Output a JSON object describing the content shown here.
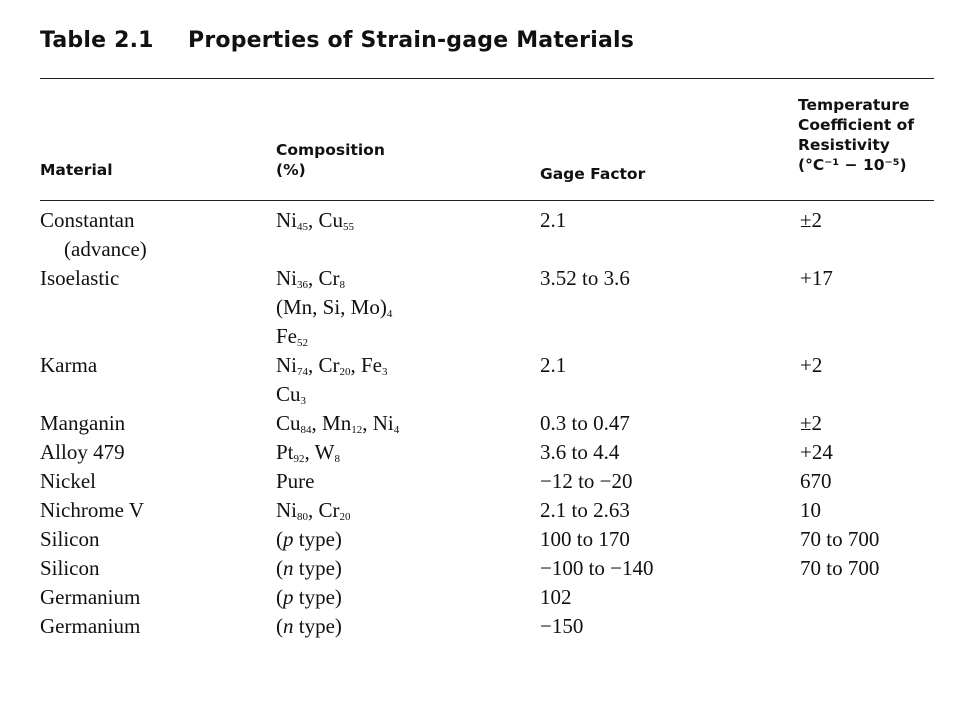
{
  "caption": {
    "table_number": "Table 2.1",
    "title": "Properties of Strain-gage Materials"
  },
  "headers": {
    "material": [
      "Material"
    ],
    "composition": [
      "Composition",
      "(%)"
    ],
    "gage_factor": [
      "Gage Factor"
    ],
    "temp_coeff": [
      "Temperature",
      "Coefficient of",
      "Resistivity",
      "(°C⁻¹ − 10⁻⁵)"
    ]
  },
  "rows": [
    {
      "material": [
        "Constantan",
        "(advance)"
      ],
      "composition": [
        [
          [
            "Ni",
            "45"
          ],
          [
            ", Cu",
            "55"
          ]
        ]
      ],
      "gage_factor": "2.1",
      "temp_coeff": "±2",
      "lines": 2
    },
    {
      "material": [
        "Isoelastic"
      ],
      "composition": [
        [
          [
            "Ni",
            "36"
          ],
          [
            ", Cr",
            "8"
          ]
        ],
        [
          [
            "(Mn, Si, Mo)",
            "4"
          ]
        ],
        [
          [
            "Fe",
            "52"
          ]
        ]
      ],
      "gage_factor": "3.52 to 3.6",
      "temp_coeff": "+17",
      "lines": 3
    },
    {
      "material": [
        "Karma"
      ],
      "composition": [
        [
          [
            "Ni",
            "74"
          ],
          [
            ", Cr",
            "20"
          ],
          [
            ", Fe",
            "3"
          ]
        ],
        [
          [
            "Cu",
            "3"
          ]
        ]
      ],
      "gage_factor": "2.1",
      "temp_coeff": "+2",
      "lines": 2
    },
    {
      "material": [
        "Manganin"
      ],
      "composition": [
        [
          [
            "Cu",
            "84"
          ],
          [
            ", Mn",
            "12"
          ],
          [
            ", Ni",
            "4"
          ]
        ]
      ],
      "gage_factor": "0.3 to 0.47",
      "temp_coeff": "±2",
      "lines": 1
    },
    {
      "material": [
        "Alloy 479"
      ],
      "composition": [
        [
          [
            "Pt",
            "92"
          ],
          [
            ", W",
            "8"
          ]
        ]
      ],
      "gage_factor": "3.6 to 4.4",
      "temp_coeff": "+24",
      "lines": 1
    },
    {
      "material": [
        "Nickel"
      ],
      "composition": [
        [
          [
            "Pure",
            ""
          ]
        ]
      ],
      "gage_factor": "−12 to −20",
      "temp_coeff": "670",
      "lines": 1
    },
    {
      "material": [
        "Nichrome V"
      ],
      "composition": [
        [
          [
            "Ni",
            "80"
          ],
          [
            ", Cr",
            "20"
          ]
        ]
      ],
      "gage_factor": "2.1 to 2.63",
      "temp_coeff": "10",
      "lines": 1
    },
    {
      "material": [
        "Silicon"
      ],
      "composition_text": {
        "pre": "(",
        "ital": "p",
        "post": " type)"
      },
      "gage_factor": "100 to 170",
      "temp_coeff": "70 to 700",
      "lines": 1
    },
    {
      "material": [
        "Silicon"
      ],
      "composition_text": {
        "pre": "(",
        "ital": "n",
        "post": " type)"
      },
      "gage_factor": "−100 to −140",
      "temp_coeff": "70 to 700",
      "lines": 1
    },
    {
      "material": [
        "Germanium"
      ],
      "composition_text": {
        "pre": "(",
        "ital": "p",
        "post": " type)"
      },
      "gage_factor": "102",
      "temp_coeff": "",
      "lines": 1
    },
    {
      "material": [
        "Germanium"
      ],
      "composition_text": {
        "pre": "(",
        "ital": "n",
        "post": " type)"
      },
      "gage_factor": "−150",
      "temp_coeff": "",
      "lines": 1
    }
  ]
}
